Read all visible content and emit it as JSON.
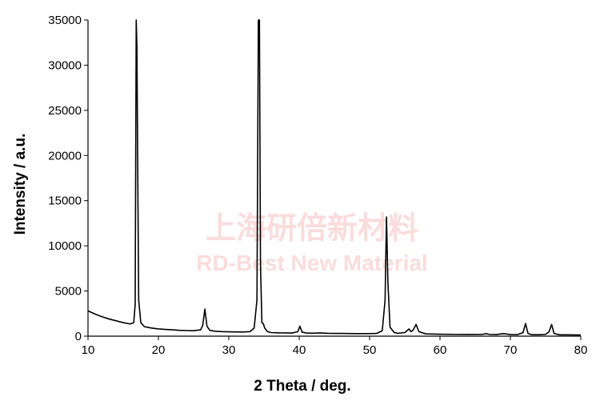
{
  "chart_data": {
    "type": "line",
    "x_label": "2 Theta / deg.",
    "y_label": "Intensity / a.u.",
    "watermark": [
      "上海研倍新材料",
      "RD-Best New Material"
    ],
    "xlim": [
      10,
      80
    ],
    "xticks": [
      10,
      20,
      30,
      40,
      50,
      60,
      70,
      80
    ],
    "ylim": [
      0,
      35000
    ],
    "yticks": [
      0,
      5000,
      10000,
      15000,
      20000,
      25000,
      30000,
      35000
    ],
    "grid": false,
    "x": [
      10,
      11,
      12,
      13,
      14,
      15,
      16,
      16.5,
      16.7,
      16.85,
      16.95,
      17.05,
      17.2,
      17.5,
      18,
      19,
      20,
      21,
      22,
      23,
      24,
      25,
      26,
      26.3,
      26.6,
      26.9,
      27.3,
      28,
      29,
      30,
      31,
      32,
      33,
      33.6,
      34.0,
      34.2,
      34.35,
      34.5,
      34.7,
      34.9,
      35.1,
      35.5,
      36,
      37,
      38,
      39,
      39.8,
      40.1,
      40.4,
      41,
      42,
      43,
      44,
      45,
      46,
      47,
      48,
      49,
      50,
      51,
      51.8,
      52.2,
      52.4,
      52.6,
      52.9,
      53.5,
      54,
      55,
      55.6,
      55.9,
      56.2,
      56.6,
      57,
      58,
      60,
      62,
      64,
      66,
      66.6,
      67,
      68,
      69,
      70,
      71,
      71.8,
      72.15,
      72.5,
      73,
      74,
      75,
      75.5,
      75.85,
      76.2,
      77,
      78,
      79,
      80
    ],
    "series": [
      {
        "color": "#000000",
        "values": [
          2800,
          2450,
          2150,
          1900,
          1700,
          1500,
          1350,
          1500,
          3500,
          35000,
          32000,
          20000,
          4000,
          1500,
          1050,
          900,
          800,
          750,
          700,
          650,
          620,
          600,
          700,
          1200,
          3000,
          1100,
          650,
          550,
          500,
          480,
          470,
          460,
          500,
          900,
          4000,
          35000,
          35000,
          8000,
          1500,
          1400,
          900,
          500,
          400,
          370,
          360,
          350,
          500,
          1100,
          450,
          350,
          330,
          360,
          320,
          300,
          300,
          290,
          280,
          280,
          280,
          300,
          600,
          4000,
          13200,
          6000,
          1000,
          400,
          320,
          400,
          800,
          500,
          700,
          1300,
          500,
          250,
          220,
          200,
          190,
          200,
          280,
          200,
          180,
          280,
          180,
          170,
          400,
          1400,
          300,
          170,
          160,
          200,
          500,
          1300,
          300,
          150,
          150,
          140,
          130
        ]
      }
    ]
  }
}
